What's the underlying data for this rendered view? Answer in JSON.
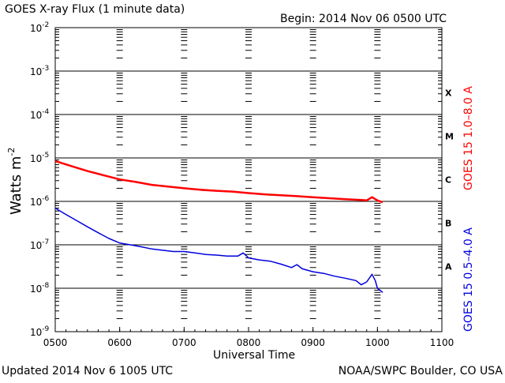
{
  "header": {
    "title": "GOES X-ray Flux (1 minute data)",
    "begin": "Begin: 2014 Nov 06 0500 UTC"
  },
  "footer": {
    "updated": "Updated 2014 Nov  6 1005 UTC",
    "credit": "NOAA/SWPC Boulder, CO USA"
  },
  "chart_data": {
    "type": "line",
    "title": "GOES X-ray Flux (1 minute data)",
    "xlabel": "Universal Time",
    "ylabel": "Watts m",
    "ylabel_exp": "-2",
    "y_scale": "log",
    "ylim": [
      1e-09,
      0.01
    ],
    "xlim": [
      "0500",
      "1100"
    ],
    "x_ticks": [
      "0500",
      "0600",
      "0700",
      "0800",
      "0900",
      "1000",
      "1100"
    ],
    "y_ticks": [
      {
        "mantissa": "10",
        "exp": "-2",
        "value": 0.01
      },
      {
        "mantissa": "10",
        "exp": "-3",
        "value": 0.001
      },
      {
        "mantissa": "10",
        "exp": "-4",
        "value": 0.0001
      },
      {
        "mantissa": "10",
        "exp": "-5",
        "value": 1e-05
      },
      {
        "mantissa": "10",
        "exp": "-6",
        "value": 1e-06
      },
      {
        "mantissa": "10",
        "exp": "-7",
        "value": 1e-07
      },
      {
        "mantissa": "10",
        "exp": "-8",
        "value": 1e-08
      },
      {
        "mantissa": "10",
        "exp": "-9",
        "value": 1e-09
      }
    ],
    "flare_classes": [
      {
        "label": "X",
        "value": 0.000316
      },
      {
        "label": "M",
        "value": 3.16e-05
      },
      {
        "label": "C",
        "value": 3.16e-06
      },
      {
        "label": "B",
        "value": 3.16e-07
      },
      {
        "label": "A",
        "value": 3.16e-08
      }
    ],
    "grid": true,
    "legend_position": "right side, vertical",
    "series": [
      {
        "name": "GOES 15 1.0–8.0 A",
        "color": "#ff0000",
        "points": [
          [
            "0500",
            8.5e-06
          ],
          [
            "0515",
            6.5e-06
          ],
          [
            "0530",
            5e-06
          ],
          [
            "0545",
            4e-06
          ],
          [
            "0600",
            3.2e-06
          ],
          [
            "0615",
            2.8e-06
          ],
          [
            "0630",
            2.4e-06
          ],
          [
            "0645",
            2.2e-06
          ],
          [
            "0700",
            2e-06
          ],
          [
            "0715",
            1.85e-06
          ],
          [
            "0730",
            1.75e-06
          ],
          [
            "0745",
            1.68e-06
          ],
          [
            "0800",
            1.55e-06
          ],
          [
            "0815",
            1.45e-06
          ],
          [
            "0830",
            1.38e-06
          ],
          [
            "0845",
            1.32e-06
          ],
          [
            "0900",
            1.25e-06
          ],
          [
            "0915",
            1.18e-06
          ],
          [
            "0930",
            1.12e-06
          ],
          [
            "0945",
            1.08e-06
          ],
          [
            "0950",
            1.05e-06
          ],
          [
            "0955",
            1.25e-06
          ],
          [
            "1000",
            1.05e-06
          ],
          [
            "1005",
            9.5e-07
          ]
        ]
      },
      {
        "name": "GOES 15 0.5–4.0 A",
        "color": "#0000dd",
        "points": [
          [
            "0500",
            7e-07
          ],
          [
            "0510",
            5e-07
          ],
          [
            "0520",
            3.6e-07
          ],
          [
            "0530",
            2.6e-07
          ],
          [
            "0540",
            1.9e-07
          ],
          [
            "0550",
            1.4e-07
          ],
          [
            "0600",
            1.1e-07
          ],
          [
            "0610",
            1e-07
          ],
          [
            "0620",
            9e-08
          ],
          [
            "0630",
            8e-08
          ],
          [
            "0640",
            7.5e-08
          ],
          [
            "0650",
            7e-08
          ],
          [
            "0700",
            7e-08
          ],
          [
            "0710",
            6.5e-08
          ],
          [
            "0720",
            6e-08
          ],
          [
            "0730",
            5.8e-08
          ],
          [
            "0740",
            5.5e-08
          ],
          [
            "0750",
            5.5e-08
          ],
          [
            "0755",
            6.5e-08
          ],
          [
            "0800",
            5e-08
          ],
          [
            "0810",
            4.5e-08
          ],
          [
            "0820",
            4.2e-08
          ],
          [
            "0830",
            3.6e-08
          ],
          [
            "0840",
            3e-08
          ],
          [
            "0845",
            3.5e-08
          ],
          [
            "0850",
            2.8e-08
          ],
          [
            "0900",
            2.4e-08
          ],
          [
            "0910",
            2.2e-08
          ],
          [
            "0920",
            1.9e-08
          ],
          [
            "0930",
            1.7e-08
          ],
          [
            "0940",
            1.5e-08
          ],
          [
            "0945",
            1.2e-08
          ],
          [
            "0950",
            1.4e-08
          ],
          [
            "0955",
            2.1e-08
          ],
          [
            "0958",
            1.5e-08
          ],
          [
            "1000",
            1e-08
          ],
          [
            "1005",
            8e-09
          ]
        ]
      }
    ]
  }
}
